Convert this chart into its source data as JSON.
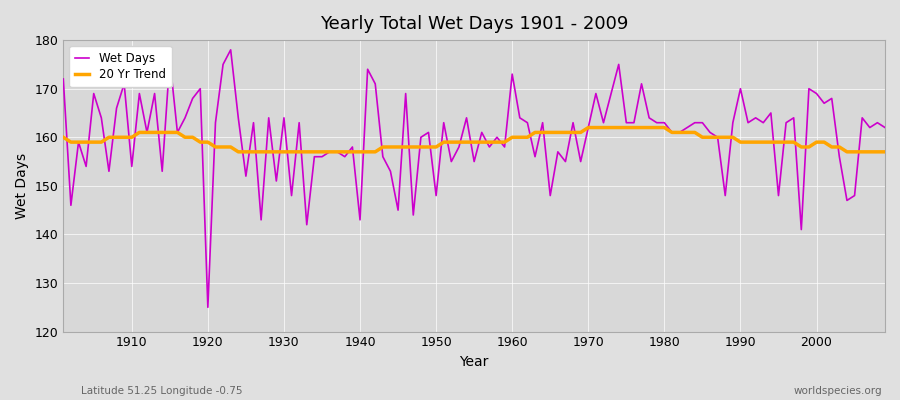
{
  "title": "Yearly Total Wet Days 1901 - 2009",
  "xlabel": "Year",
  "ylabel": "Wet Days",
  "subtitle_left": "Latitude 51.25 Longitude -0.75",
  "subtitle_right": "worldspecies.org",
  "ylim": [
    120,
    180
  ],
  "xlim": [
    1901,
    2009
  ],
  "yticks": [
    120,
    130,
    140,
    150,
    160,
    170,
    180
  ],
  "xticks": [
    1910,
    1920,
    1930,
    1940,
    1950,
    1960,
    1970,
    1980,
    1990,
    2000
  ],
  "wet_days_color": "#CC00CC",
  "trend_color": "#FFA500",
  "fig_bg_color": "#E0E0E0",
  "plot_bg_color": "#D8D8D8",
  "wet_days": {
    "1901": 172,
    "1902": 146,
    "1903": 159,
    "1904": 154,
    "1905": 169,
    "1906": 164,
    "1907": 153,
    "1908": 166,
    "1909": 171,
    "1910": 154,
    "1911": 169,
    "1912": 161,
    "1913": 169,
    "1914": 153,
    "1915": 176,
    "1916": 161,
    "1917": 164,
    "1918": 168,
    "1919": 170,
    "1920": 125,
    "1921": 163,
    "1922": 175,
    "1923": 178,
    "1924": 164,
    "1925": 152,
    "1926": 163,
    "1927": 143,
    "1928": 164,
    "1929": 151,
    "1930": 164,
    "1931": 148,
    "1932": 163,
    "1933": 142,
    "1934": 156,
    "1935": 156,
    "1936": 157,
    "1937": 157,
    "1938": 156,
    "1939": 158,
    "1940": 143,
    "1941": 174,
    "1942": 171,
    "1943": 156,
    "1944": 153,
    "1945": 145,
    "1946": 169,
    "1947": 144,
    "1948": 160,
    "1949": 161,
    "1950": 148,
    "1951": 163,
    "1952": 155,
    "1953": 158,
    "1954": 164,
    "1955": 155,
    "1956": 161,
    "1957": 158,
    "1958": 160,
    "1959": 158,
    "1960": 173,
    "1961": 164,
    "1962": 163,
    "1963": 156,
    "1964": 163,
    "1965": 148,
    "1966": 157,
    "1967": 155,
    "1968": 163,
    "1969": 155,
    "1970": 162,
    "1971": 169,
    "1972": 163,
    "1973": 169,
    "1974": 175,
    "1975": 163,
    "1976": 163,
    "1977": 171,
    "1978": 164,
    "1979": 163,
    "1980": 163,
    "1981": 161,
    "1982": 161,
    "1983": 162,
    "1984": 163,
    "1985": 163,
    "1986": 161,
    "1987": 160,
    "1988": 148,
    "1989": 163,
    "1990": 170,
    "1991": 163,
    "1992": 164,
    "1993": 163,
    "1994": 165,
    "1995": 148,
    "1996": 163,
    "1997": 164,
    "1998": 141,
    "1999": 170,
    "2000": 169,
    "2001": 167,
    "2002": 168,
    "2003": 156,
    "2004": 147,
    "2005": 148,
    "2006": 164,
    "2007": 162,
    "2008": 163,
    "2009": 162
  },
  "trend_20yr": {
    "1901": 160,
    "1902": 159,
    "1903": 159,
    "1904": 159,
    "1905": 159,
    "1906": 159,
    "1907": 160,
    "1908": 160,
    "1909": 160,
    "1910": 160,
    "1911": 161,
    "1912": 161,
    "1913": 161,
    "1914": 161,
    "1915": 161,
    "1916": 161,
    "1917": 160,
    "1918": 160,
    "1919": 159,
    "1920": 159,
    "1921": 158,
    "1922": 158,
    "1923": 158,
    "1924": 157,
    "1925": 157,
    "1926": 157,
    "1927": 157,
    "1928": 157,
    "1929": 157,
    "1930": 157,
    "1931": 157,
    "1932": 157,
    "1933": 157,
    "1934": 157,
    "1935": 157,
    "1936": 157,
    "1937": 157,
    "1938": 157,
    "1939": 157,
    "1940": 157,
    "1941": 157,
    "1942": 157,
    "1943": 158,
    "1944": 158,
    "1945": 158,
    "1946": 158,
    "1947": 158,
    "1948": 158,
    "1949": 158,
    "1950": 158,
    "1951": 159,
    "1952": 159,
    "1953": 159,
    "1954": 159,
    "1955": 159,
    "1956": 159,
    "1957": 159,
    "1958": 159,
    "1959": 159,
    "1960": 160,
    "1961": 160,
    "1962": 160,
    "1963": 161,
    "1964": 161,
    "1965": 161,
    "1966": 161,
    "1967": 161,
    "1968": 161,
    "1969": 161,
    "1970": 162,
    "1971": 162,
    "1972": 162,
    "1973": 162,
    "1974": 162,
    "1975": 162,
    "1976": 162,
    "1977": 162,
    "1978": 162,
    "1979": 162,
    "1980": 162,
    "1981": 161,
    "1982": 161,
    "1983": 161,
    "1984": 161,
    "1985": 160,
    "1986": 160,
    "1987": 160,
    "1988": 160,
    "1989": 160,
    "1990": 159,
    "1991": 159,
    "1992": 159,
    "1993": 159,
    "1994": 159,
    "1995": 159,
    "1996": 159,
    "1997": 159,
    "1998": 158,
    "1999": 158,
    "2000": 159,
    "2001": 159,
    "2002": 158,
    "2003": 158,
    "2004": 157,
    "2005": 157,
    "2006": 157,
    "2007": 157,
    "2008": 157,
    "2009": 157
  }
}
